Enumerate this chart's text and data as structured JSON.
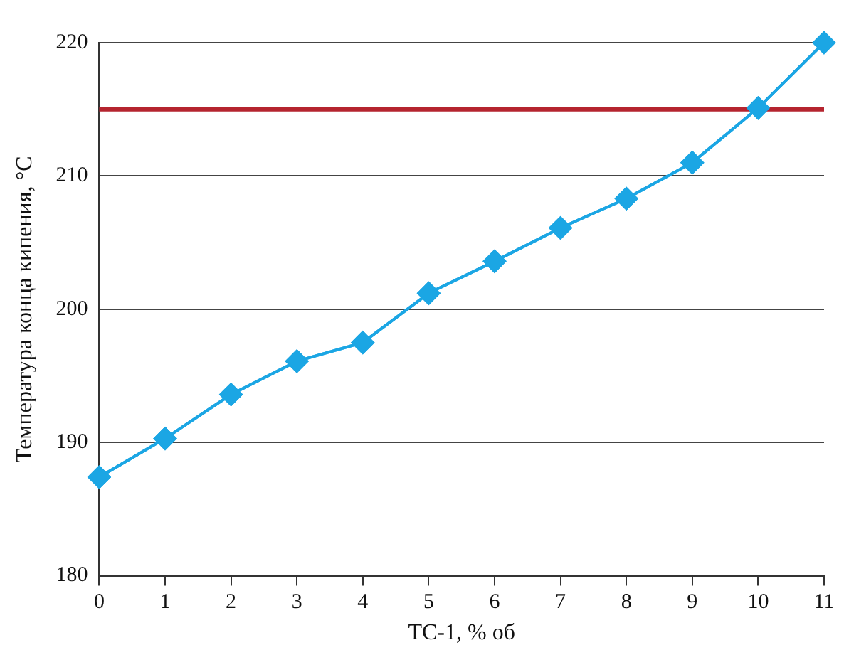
{
  "chart_data": {
    "type": "line",
    "xlabel": "ТС-1, % об",
    "ylabel": "Температура конца кипения, °С",
    "x": [
      0,
      1,
      2,
      3,
      4,
      5,
      6,
      7,
      8,
      9,
      10,
      11
    ],
    "series": [
      {
        "color": "#1ba6e4",
        "values": [
          187.4,
          190.3,
          193.6,
          196.1,
          197.5,
          201.2,
          203.6,
          206.1,
          208.3,
          211.0,
          215.1,
          220.0
        ]
      }
    ],
    "xlim": [
      0,
      11
    ],
    "xticks": [
      0,
      1,
      2,
      3,
      4,
      5,
      6,
      7,
      8,
      9,
      10,
      11
    ],
    "ylim": [
      180,
      220
    ],
    "yticks": [
      180,
      190,
      200,
      210,
      220
    ],
    "grid": "y",
    "marker": "diamond",
    "line_style": "solid",
    "legend": false,
    "ref_lines": [
      {
        "axis": "y",
        "value": 215,
        "color": "#b5242f"
      }
    ]
  }
}
